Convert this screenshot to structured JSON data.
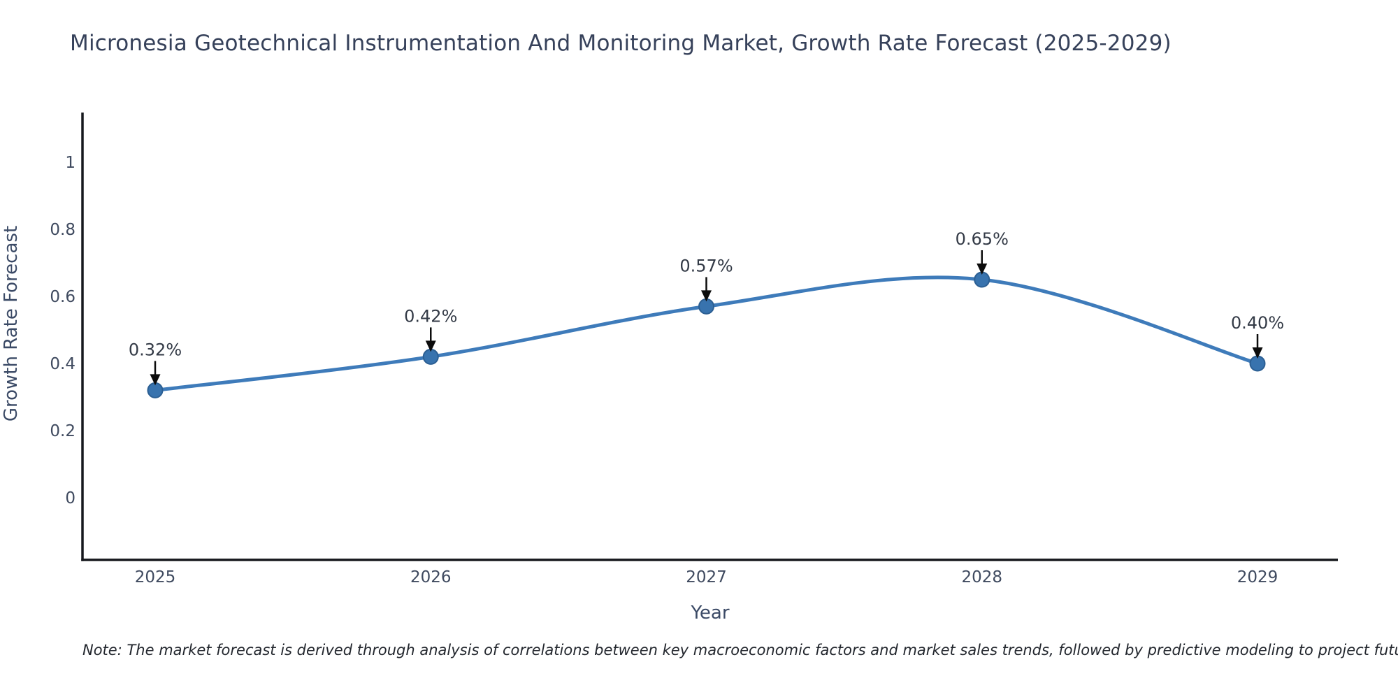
{
  "title": "Micronesia Geotechnical Instrumentation And Monitoring Market, Growth Rate Forecast (2025-2029)",
  "note": "Note: The market forecast is derived through analysis of correlations between key macroeconomic factors and market sales trends, followed by predictive modeling to project future sales",
  "chart_data": {
    "type": "line",
    "title": "Micronesia Geotechnical Instrumentation And Monitoring Market, Growth Rate Forecast (2025-2029)",
    "xlabel": "Year",
    "ylabel": "Growth Rate Forecast",
    "categories": [
      "2025",
      "2026",
      "2027",
      "2028",
      "2029"
    ],
    "series": [
      {
        "name": "Growth Rate Forecast",
        "values": [
          0.32,
          0.42,
          0.57,
          0.65,
          0.4
        ],
        "point_labels": [
          "0.32%",
          "0.42%",
          "0.57%",
          "0.65%",
          "0.40%"
        ]
      }
    ],
    "y_ticks": [
      {
        "label": "1",
        "value": 1.0
      },
      {
        "label": "0.8",
        "value": 0.8
      },
      {
        "label": "0.6",
        "value": 0.6
      },
      {
        "label": "0.4",
        "value": 0.4
      },
      {
        "label": "0.2",
        "value": 0.2
      },
      {
        "label": "0",
        "value": 0.0
      }
    ],
    "ylim": [
      -0.19,
      1.15
    ],
    "grid": false,
    "legend_position": "none",
    "line_interpolation": "spline",
    "annotation_style": "value labels with black arrows pointing to markers"
  },
  "colors": {
    "line": "#3e7bba",
    "marker_fill": "#3873ae",
    "marker_edge": "#2c5f93",
    "axis": "#16181d",
    "tick_text": "#3f4a5f",
    "data_label_text": "#333a46",
    "title_text": "#36415a",
    "arrow": "#0c0c0c",
    "background": "#ffffff"
  }
}
